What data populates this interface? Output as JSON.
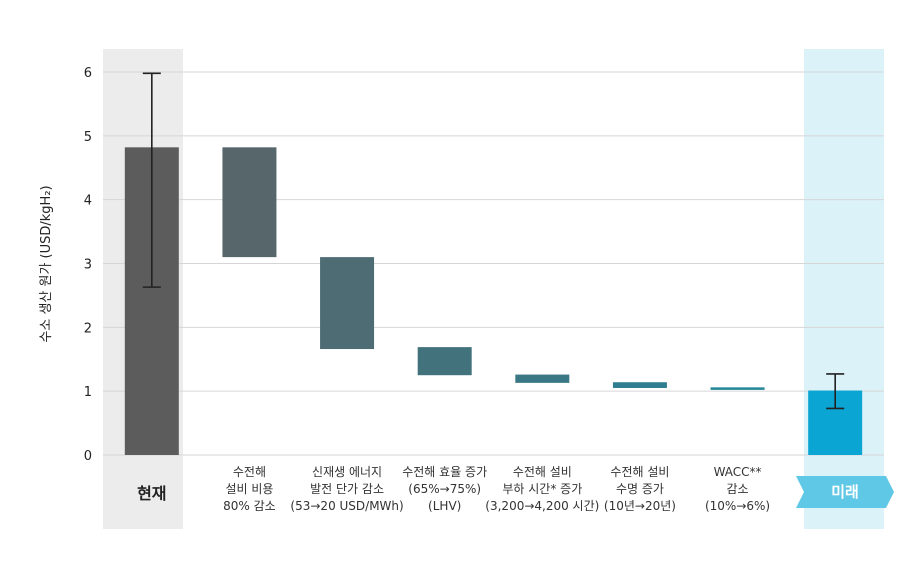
{
  "chart_data": {
    "type": "bar",
    "subtype": "waterfall",
    "ylabel": "수소 생산 원가 (USD/kgH₂)",
    "ylim": [
      0,
      6
    ],
    "yticks": [
      "0",
      "1",
      "2",
      "3",
      "4",
      "5",
      "6"
    ],
    "grid": true,
    "categories": [
      {
        "lines": [
          "현재"
        ]
      },
      {
        "lines": [
          "수전해",
          "설비 비용",
          "80% 감소"
        ]
      },
      {
        "lines": [
          "신재생 에너지",
          "발전 단가 감소",
          "(53→20 USD/MWh)"
        ]
      },
      {
        "lines": [
          "수전해 효율 증가",
          "(65%→75%)",
          "(LHV)"
        ]
      },
      {
        "lines": [
          "수전해 설비",
          "부하 시간* 증가",
          "(3,200→4,200 시간)"
        ]
      },
      {
        "lines": [
          "수전해 설비",
          "수명 증가",
          "(10년→20년)"
        ]
      },
      {
        "lines": [
          "WACC**",
          "감소",
          "(10%→6%)"
        ]
      },
      {
        "lines": [
          "미래"
        ]
      }
    ],
    "bars": [
      {
        "low": 0,
        "high": 4.82,
        "color": "#5c5c5c",
        "error": [
          2.63,
          5.98
        ]
      },
      {
        "low": 3.1,
        "high": 4.82,
        "color": "#56666b"
      },
      {
        "low": 1.66,
        "high": 3.1,
        "color": "#4e6c74"
      },
      {
        "low": 1.25,
        "high": 1.69,
        "color": "#42727c"
      },
      {
        "low": 1.13,
        "high": 1.26,
        "color": "#3a7886"
      },
      {
        "low": 1.05,
        "high": 1.14,
        "color": "#2f7f90"
      },
      {
        "low": 1.02,
        "high": 1.06,
        "color": "#268898"
      },
      {
        "low": 0,
        "high": 1.01,
        "color": "#0aa5d3",
        "error": [
          0.73,
          1.27
        ]
      }
    ],
    "colors": {
      "now_band": "#ececec",
      "future_band": "#dcf2f9",
      "future_tag": "#5fc8e6",
      "grid": "#d6d6d6"
    }
  }
}
